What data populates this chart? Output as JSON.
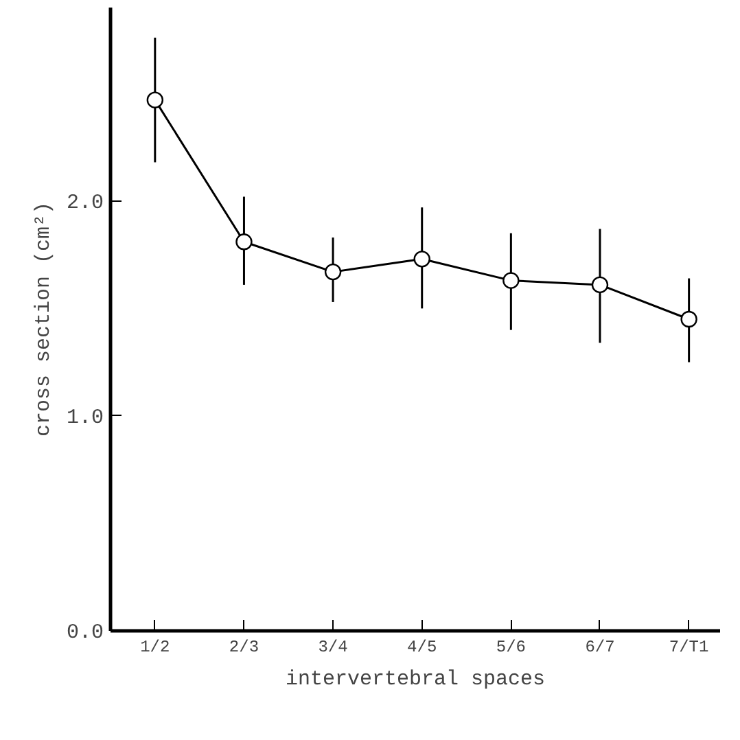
{
  "chart_data": {
    "type": "line",
    "xlabel": "intervertebral spaces",
    "ylabel": "cross section (cm²)",
    "categories": [
      "1/2",
      "2/3",
      "3/4",
      "4/5",
      "5/6",
      "6/7",
      "7/T1"
    ],
    "values": [
      2.47,
      1.81,
      1.67,
      1.73,
      1.63,
      1.61,
      1.45
    ],
    "errors": [
      [
        2.18,
        2.76
      ],
      [
        1.61,
        2.02
      ],
      [
        1.53,
        1.83
      ],
      [
        1.5,
        1.97
      ],
      [
        1.4,
        1.85
      ],
      [
        1.34,
        1.87
      ],
      [
        1.25,
        1.64
      ]
    ],
    "color": "#000000",
    "marker": "circle",
    "line_style": "solid",
    "ylim": [
      0,
      2.9
    ],
    "yticks": [
      {
        "value": 0,
        "label": "0.0"
      },
      {
        "value": 1,
        "label": "1.0"
      },
      {
        "value": 2,
        "label": "2.0"
      }
    ],
    "grid": false
  }
}
